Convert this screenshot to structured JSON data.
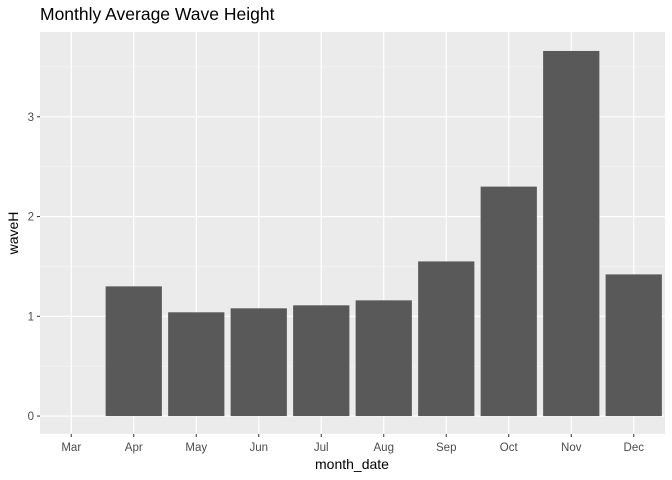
{
  "chart_data": {
    "type": "bar",
    "title": "Monthly Average Wave Height",
    "xlabel": "month_date",
    "ylabel": "waveH",
    "categories": [
      "Mar",
      "Apr",
      "May",
      "Jun",
      "Jul",
      "Aug",
      "Sep",
      "Oct",
      "Nov",
      "Dec"
    ],
    "values": [
      0,
      1.3,
      1.04,
      1.08,
      1.11,
      1.16,
      1.55,
      2.3,
      3.66,
      1.42
    ],
    "y_ticks": [
      0,
      1,
      2,
      3
    ],
    "y_tick_labels": [
      "0",
      "1",
      "2",
      "3"
    ],
    "ylim": [
      -0.18,
      3.85
    ],
    "grid": true,
    "legend": "none",
    "colors": {
      "bar": "#595959",
      "panel": "#ebebeb",
      "grid_major": "#ffffff",
      "grid_minor": "#f5f5f5",
      "tick": "#333333"
    }
  }
}
